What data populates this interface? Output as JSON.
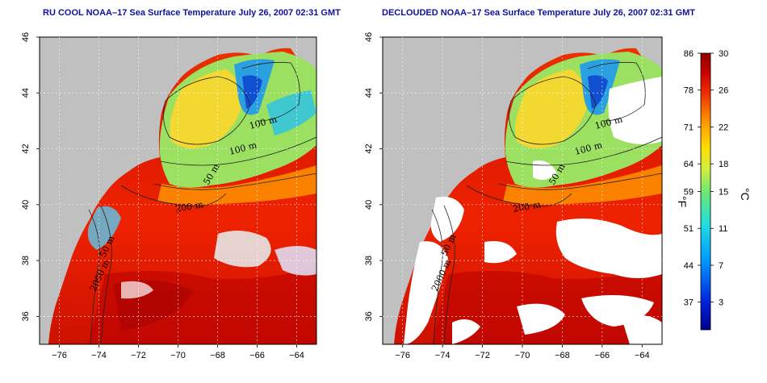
{
  "titles": {
    "left": "RU COOL NOAA–17 Sea Surface Temperature July 26, 2007 02:31 GMT",
    "right": "DECLOUDED NOAA–17 Sea Surface Temperature July 26, 2007 02:31 GMT"
  },
  "axes": {
    "x_ticks": [
      "−76",
      "−74",
      "−72",
      "−70",
      "−68",
      "−66",
      "−64"
    ],
    "y_ticks": [
      "36",
      "38",
      "40",
      "42",
      "44",
      "46"
    ],
    "x_range": [
      -77,
      -63
    ],
    "y_range": [
      35,
      46
    ]
  },
  "contour_labels": {
    "c100a": "100 m",
    "c100b": "100 m",
    "c50": "50 m",
    "c200": "200 m",
    "c2000": "2000 m",
    "c50sw": "50 m"
  },
  "colorbar": {
    "fahrenheit_ticks": [
      "86",
      "78",
      "71",
      "64",
      "59",
      "51",
      "44",
      "37"
    ],
    "celsius_ticks": [
      "30",
      "26",
      "22",
      "18",
      "15",
      "11",
      "7",
      "3"
    ],
    "f_unit": "°F",
    "c_unit": "°C",
    "range_c": [
      0,
      30
    ]
  },
  "colors": {
    "land": "#c0c0c0",
    "cloud_mask": "#ffffff",
    "title": "#1010a0",
    "scale": [
      "#00008b",
      "#0044ff",
      "#00ccff",
      "#40e0b0",
      "#c8ee40",
      "#ffdd00",
      "#ff8800",
      "#ee3300",
      "#cc0000",
      "#8b0000"
    ]
  }
}
